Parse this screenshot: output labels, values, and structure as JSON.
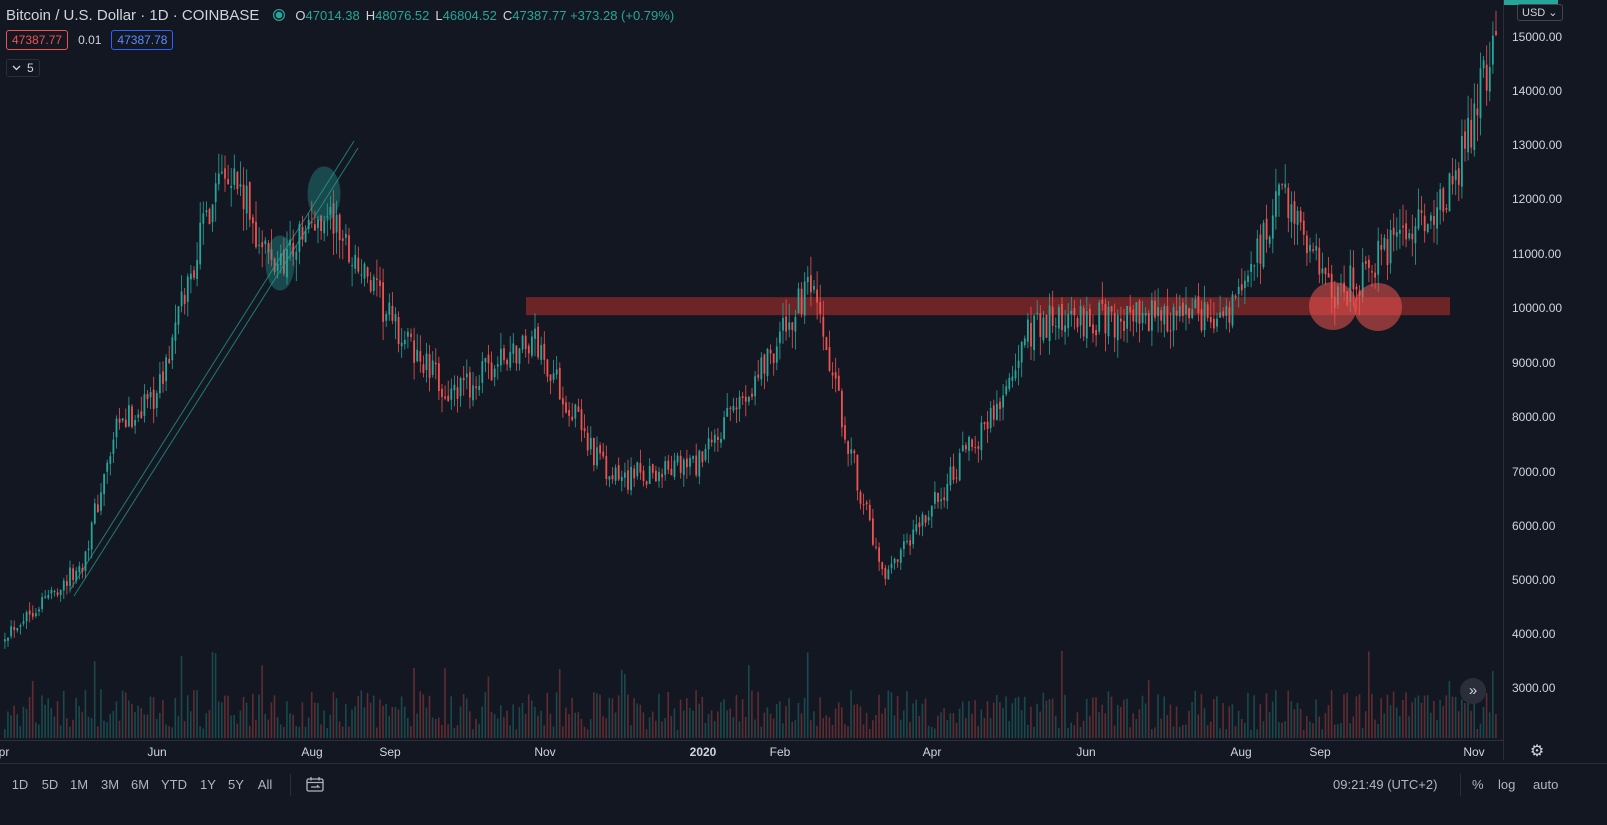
{
  "header": {
    "symbol_title": "Bitcoin / U.S. Dollar · 1D · COINBASE",
    "ohlc": [
      {
        "key": "O",
        "value": "47014.38"
      },
      {
        "key": "H",
        "value": "48076.52"
      },
      {
        "key": "L",
        "value": "46804.52"
      },
      {
        "key": "C",
        "value": "47387.77 +373.28 (+0.79%)"
      }
    ],
    "sell_price": "47387.77",
    "spread": "0.01",
    "buy_price": "47387.78",
    "indicators_toggle_label": "5",
    "currency": "USD"
  },
  "colors": {
    "background": "#131722",
    "up": "#26a69a",
    "down": "#ef5350",
    "grid": "#2a2e39",
    "text": "#d1d4dc",
    "resistance_zone": "#8b2a2a"
  },
  "icons": [
    "live-status-icon",
    "chevron-down-icon",
    "date-range-icon",
    "settings-gear-icon",
    "scroll-right-icon"
  ],
  "price_axis": {
    "ticks": [
      "15000.00",
      "14000.00",
      "13000.00",
      "12000.00",
      "11000.00",
      "10000.00",
      "9000.00",
      "8000.00",
      "7000.00",
      "6000.00",
      "5000.00",
      "4000.00",
      "3000.00"
    ]
  },
  "time_axis": {
    "ticks": [
      {
        "label": "pr",
        "bold": false
      },
      {
        "label": "Jun",
        "bold": false
      },
      {
        "label": "Aug",
        "bold": false
      },
      {
        "label": "Sep",
        "bold": false
      },
      {
        "label": "Nov",
        "bold": false
      },
      {
        "label": "2020",
        "bold": true
      },
      {
        "label": "Feb",
        "bold": false
      },
      {
        "label": "Apr",
        "bold": false
      },
      {
        "label": "Jun",
        "bold": false
      },
      {
        "label": "Aug",
        "bold": false
      },
      {
        "label": "Sep",
        "bold": false
      },
      {
        "label": "Nov",
        "bold": false
      }
    ]
  },
  "toolbar": {
    "timeframes": [
      "1D",
      "5D",
      "1M",
      "3M",
      "6M",
      "YTD",
      "1Y",
      "5Y",
      "All"
    ],
    "clock": "09:21:49 (UTC+2)",
    "percent_label": "%",
    "log_label": "log",
    "auto_label": "auto"
  },
  "chart_data": {
    "type": "candlestick",
    "resolution": "1D",
    "y_scale": "linear",
    "ylim": [
      2200,
      15300
    ],
    "grid": false,
    "approx_close_path": [
      {
        "t": "2019-04",
        "close": 4100
      },
      {
        "t": "2019-05-01",
        "close": 5300
      },
      {
        "t": "2019-05-15",
        "close": 7800
      },
      {
        "t": "2019-06-01",
        "close": 8600
      },
      {
        "t": "2019-06-26",
        "close": 12900
      },
      {
        "t": "2019-07-15",
        "close": 10800
      },
      {
        "t": "2019-08-06",
        "close": 11800
      },
      {
        "t": "2019-09-01",
        "close": 9700
      },
      {
        "t": "2019-09-24",
        "close": 8400
      },
      {
        "t": "2019-10-26",
        "close": 9500
      },
      {
        "t": "2019-11-25",
        "close": 6900
      },
      {
        "t": "2019-12-31",
        "close": 7200
      },
      {
        "t": "2020-02-12",
        "close": 10400
      },
      {
        "t": "2020-03-12",
        "close": 5000
      },
      {
        "t": "2020-04-30",
        "close": 8600
      },
      {
        "t": "2020-05-10",
        "close": 9800
      },
      {
        "t": "2020-07-26",
        "close": 9900
      },
      {
        "t": "2020-08-17",
        "close": 12200
      },
      {
        "t": "2020-09-05",
        "close": 10200
      },
      {
        "t": "2020-10-20",
        "close": 12000
      },
      {
        "t": "2020-11-10",
        "close": 15200
      }
    ]
  }
}
